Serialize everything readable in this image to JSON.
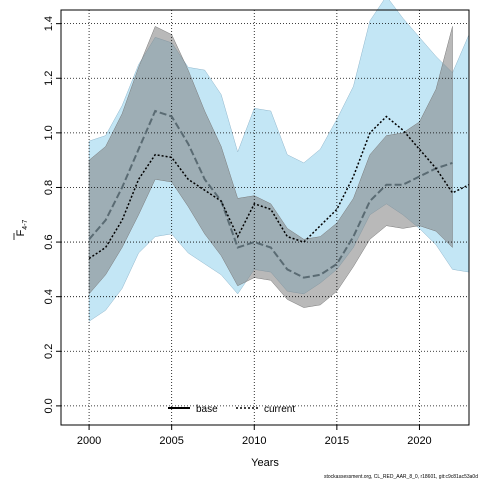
{
  "chart_data": {
    "type": "line",
    "xlabel": "Years",
    "ylabel_main": "F",
    "ylabel_sub": "4-7",
    "xlim": [
      1998.3,
      2023
    ],
    "ylim": [
      -0.07,
      1.45
    ],
    "xticks": [
      2000,
      2005,
      2010,
      2015,
      2020
    ],
    "yticks": [
      0.0,
      0.2,
      0.4,
      0.6,
      0.8,
      1.0,
      1.2,
      1.4
    ],
    "ytick_labels": [
      "0.0",
      "0.2",
      "0.4",
      "0.6",
      "0.8",
      "1.0",
      "1.2",
      "1.4"
    ],
    "grid": true,
    "legend_position": "bottom-center",
    "footnote": "stockassessment.org, CL_RED_AAR_8_0, r18601, git:c9c81ac53a0d",
    "series": [
      {
        "name": "base",
        "color": "#5a6b73",
        "band_color": "#808080",
        "x": [
          2000,
          2001,
          2002,
          2003,
          2004,
          2005,
          2006,
          2007,
          2008,
          2009,
          2010,
          2011,
          2012,
          2013,
          2014,
          2015,
          2016,
          2017,
          2018,
          2019,
          2020,
          2021,
          2022
        ],
        "values": [
          0.61,
          0.68,
          0.8,
          0.94,
          1.08,
          1.06,
          0.96,
          0.83,
          0.75,
          0.58,
          0.6,
          0.58,
          0.5,
          0.47,
          0.48,
          0.52,
          0.62,
          0.75,
          0.81,
          0.81,
          0.84,
          0.87,
          0.89
        ],
        "lower": [
          0.41,
          0.48,
          0.58,
          0.7,
          0.83,
          0.82,
          0.73,
          0.63,
          0.55,
          0.44,
          0.47,
          0.46,
          0.39,
          0.36,
          0.37,
          0.42,
          0.51,
          0.61,
          0.66,
          0.65,
          0.66,
          0.64,
          0.58
        ],
        "upper": [
          0.9,
          0.95,
          1.07,
          1.24,
          1.39,
          1.36,
          1.23,
          1.08,
          0.95,
          0.76,
          0.77,
          0.74,
          0.65,
          0.61,
          0.62,
          0.67,
          0.76,
          0.92,
          0.99,
          1.0,
          1.04,
          1.16,
          1.39
        ]
      },
      {
        "name": "current",
        "color": "#000000",
        "band_color": "#87ceeb",
        "x": [
          2000,
          2001,
          2002,
          2003,
          2004,
          2005,
          2006,
          2007,
          2008,
          2009,
          2010,
          2011,
          2012,
          2013,
          2014,
          2015,
          2016,
          2017,
          2018,
          2019,
          2020,
          2021,
          2022,
          2023
        ],
        "values": [
          0.54,
          0.58,
          0.68,
          0.83,
          0.92,
          0.91,
          0.83,
          0.79,
          0.75,
          0.62,
          0.74,
          0.72,
          0.62,
          0.6,
          0.66,
          0.72,
          0.84,
          1.0,
          1.06,
          1.01,
          0.94,
          0.87,
          0.78,
          0.81
        ],
        "lower": [
          0.31,
          0.35,
          0.43,
          0.56,
          0.62,
          0.63,
          0.56,
          0.52,
          0.48,
          0.41,
          0.5,
          0.49,
          0.42,
          0.41,
          0.45,
          0.5,
          0.58,
          0.7,
          0.74,
          0.7,
          0.65,
          0.59,
          0.5,
          0.49
        ],
        "upper": [
          0.97,
          0.99,
          1.1,
          1.25,
          1.35,
          1.33,
          1.24,
          1.23,
          1.14,
          0.93,
          1.09,
          1.08,
          0.92,
          0.89,
          0.94,
          1.05,
          1.17,
          1.41,
          1.5,
          1.42,
          1.35,
          1.28,
          1.22,
          1.36
        ]
      }
    ]
  }
}
